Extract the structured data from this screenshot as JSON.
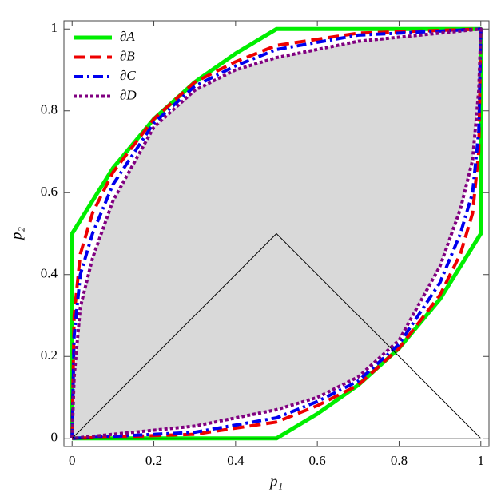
{
  "chart_data": {
    "type": "line",
    "xlabel": "p₁",
    "ylabel": "p₂",
    "xlim": [
      -0.02,
      1.02
    ],
    "ylim": [
      -0.02,
      1.02
    ],
    "xticks": [
      0,
      0.2,
      0.4,
      0.6,
      0.8,
      1
    ],
    "yticks": [
      0,
      0.2,
      0.4,
      0.6,
      0.8,
      1
    ],
    "legend": "upper left",
    "series": [
      {
        "name": "∂A",
        "color": "#00ee00",
        "dash": "solid",
        "x": [
          0,
          0,
          0.1,
          0.2,
          0.3,
          0.4,
          0.5,
          1,
          1,
          0.9,
          0.8,
          0.7,
          0.6,
          0.5,
          0
        ],
        "values": [
          0,
          0.5,
          0.66,
          0.78,
          0.87,
          0.94,
          1,
          1,
          0.5,
          0.34,
          0.22,
          0.13,
          0.06,
          0,
          0
        ]
      },
      {
        "name": "∂B",
        "color": "#ee0000",
        "dash": "dashed",
        "x": [
          0,
          0.005,
          0.02,
          0.05,
          0.1,
          0.2,
          0.3,
          0.4,
          0.5,
          0.7,
          1,
          0.995,
          0.98,
          0.95,
          0.9,
          0.8,
          0.7,
          0.6,
          0.5,
          0.3,
          0
        ],
        "values": [
          0,
          0.3,
          0.45,
          0.55,
          0.65,
          0.78,
          0.87,
          0.92,
          0.96,
          0.99,
          1,
          0.7,
          0.55,
          0.45,
          0.35,
          0.22,
          0.13,
          0.08,
          0.04,
          0.01,
          0
        ]
      },
      {
        "name": "∂C",
        "color": "#0000ee",
        "dash": "dashdot",
        "x": [
          0,
          0.005,
          0.02,
          0.05,
          0.1,
          0.2,
          0.3,
          0.4,
          0.5,
          0.7,
          1,
          0.995,
          0.98,
          0.95,
          0.9,
          0.8,
          0.7,
          0.6,
          0.5,
          0.3,
          0
        ],
        "values": [
          0,
          0.25,
          0.4,
          0.5,
          0.62,
          0.77,
          0.86,
          0.91,
          0.95,
          0.985,
          1,
          0.75,
          0.6,
          0.5,
          0.38,
          0.23,
          0.14,
          0.09,
          0.05,
          0.015,
          0
        ]
      },
      {
        "name": "∂D",
        "color": "#800080",
        "dash": "dotted",
        "fill": "#d9d9d9",
        "x": [
          0,
          0.005,
          0.02,
          0.05,
          0.1,
          0.2,
          0.3,
          0.4,
          0.5,
          0.7,
          1,
          0.995,
          0.98,
          0.95,
          0.9,
          0.8,
          0.7,
          0.6,
          0.5,
          0.3,
          0
        ],
        "values": [
          0,
          0.15,
          0.32,
          0.44,
          0.58,
          0.76,
          0.85,
          0.9,
          0.93,
          0.97,
          1,
          0.85,
          0.68,
          0.56,
          0.42,
          0.24,
          0.15,
          0.1,
          0.07,
          0.03,
          0
        ]
      },
      {
        "color": "#000000",
        "dash": "solid",
        "x": [
          0,
          0.5,
          1,
          0
        ],
        "values": [
          0,
          0.5,
          0,
          0
        ]
      }
    ]
  }
}
